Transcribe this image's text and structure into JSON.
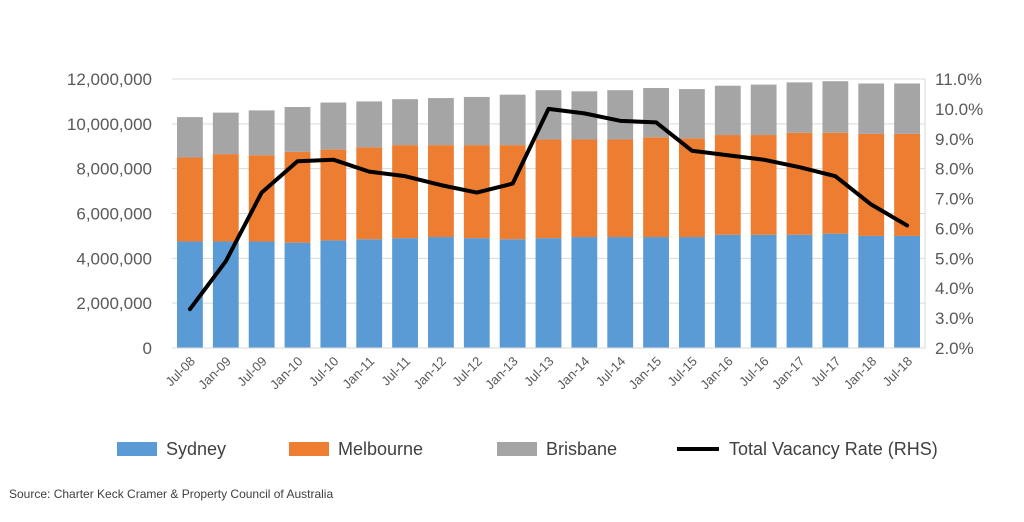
{
  "chart_data": {
    "type": "bar",
    "stacked": true,
    "categories": [
      "Jul-08",
      "Jan-09",
      "Jul-09",
      "Jan-10",
      "Jul-10",
      "Jan-11",
      "Jul-11",
      "Jan-12",
      "Jul-12",
      "Jan-13",
      "Jul-13",
      "Jan-14",
      "Jul-14",
      "Jan-15",
      "Jul-15",
      "Jan-16",
      "Jul-16",
      "Jan-17",
      "Jul-17",
      "Jan-18",
      "Jul-18"
    ],
    "series": [
      {
        "name": "Sydney",
        "color": "#5b9bd5",
        "values": [
          4750000,
          4750000,
          4750000,
          4700000,
          4800000,
          4850000,
          4900000,
          4950000,
          4900000,
          4850000,
          4900000,
          4950000,
          4950000,
          4950000,
          4950000,
          5050000,
          5050000,
          5050000,
          5100000,
          5000000,
          5000000
        ]
      },
      {
        "name": "Melbourne",
        "color": "#ed7d31",
        "values": [
          3750000,
          3900000,
          3850000,
          4050000,
          4050000,
          4100000,
          4150000,
          4100000,
          4150000,
          4200000,
          4400000,
          4350000,
          4350000,
          4450000,
          4400000,
          4450000,
          4450000,
          4550000,
          4500000,
          4550000,
          4550000
        ]
      },
      {
        "name": "Brisbane",
        "color": "#a5a5a5",
        "values": [
          1800000,
          1850000,
          2000000,
          2000000,
          2100000,
          2050000,
          2050000,
          2100000,
          2150000,
          2250000,
          2200000,
          2150000,
          2200000,
          2200000,
          2200000,
          2200000,
          2250000,
          2250000,
          2300000,
          2250000,
          2250000
        ]
      },
      {
        "name": "Total Vacancy Rate (RHS)",
        "color": "#000000",
        "type": "line",
        "axis": "right",
        "values": [
          3.3,
          4.9,
          7.2,
          8.25,
          8.3,
          7.9,
          7.75,
          7.45,
          7.2,
          7.5,
          10.0,
          9.85,
          9.6,
          9.55,
          8.6,
          8.45,
          8.3,
          8.05,
          7.75,
          6.8,
          6.1
        ]
      }
    ],
    "yticks": [
      "0",
      "2,000,000",
      "4,000,000",
      "6,000,000",
      "8,000,000",
      "10,000,000",
      "12,000,000"
    ],
    "y2ticks": [
      "2.0%",
      "3.0%",
      "4.0%",
      "5.0%",
      "6.0%",
      "7.0%",
      "8.0%",
      "9.0%",
      "10.0%",
      "11.0%"
    ],
    "ylim": [
      0,
      12000000
    ],
    "y2lim": [
      2.0,
      11.0
    ],
    "grid": true,
    "legend_position": "bottom"
  },
  "source": "Source: Charter Keck Cramer & Property Council of Australia"
}
